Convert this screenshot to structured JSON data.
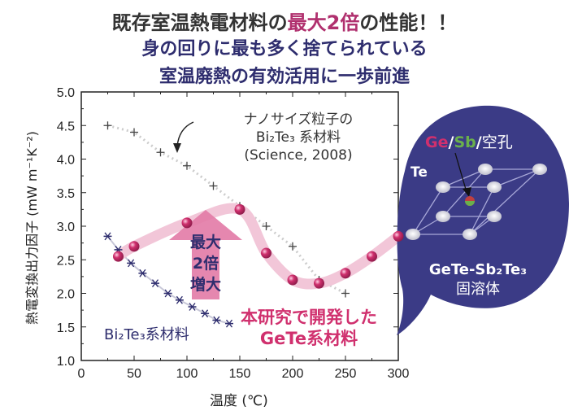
{
  "title": {
    "line1_pre": "既存室温熱電材料の",
    "line1_highlight": "最大2倍",
    "line1_post": "の性能！！",
    "line2": "身の回りに最も多く捨てられている",
    "line3": "室温廃熱の有効活用に一歩前進"
  },
  "chart_data": {
    "type": "scatter",
    "xlabel": "温度 (℃)",
    "ylabel": "熱電変換出力因子 (mW m⁻¹K⁻²)",
    "xlim": [
      0,
      300
    ],
    "ylim": [
      1.0,
      5.0
    ],
    "xticks": [
      "0",
      "50",
      "100",
      "150",
      "200",
      "250",
      "300"
    ],
    "yticks": [
      "1.0",
      "1.5",
      "2.0",
      "2.5",
      "3.0",
      "3.5",
      "4.0",
      "4.5",
      "5.0"
    ],
    "grid": false,
    "series": [
      {
        "name": "ナノサイズ粒子のBi2Te3系材料 (Science, 2008)",
        "marker": "plus",
        "color": "#444444",
        "x": [
          25,
          50,
          75,
          100,
          125,
          150,
          175,
          200,
          225,
          250
        ],
        "y": [
          4.5,
          4.4,
          4.1,
          3.9,
          3.6,
          3.3,
          3.0,
          2.7,
          2.2,
          2.0
        ]
      },
      {
        "name": "Bi2Te3系材料",
        "marker": "asterisk",
        "color": "#2e2d6e",
        "x": [
          25,
          35,
          47,
          58,
          70,
          82,
          93,
          105,
          117,
          128,
          140
        ],
        "y": [
          2.85,
          2.65,
          2.45,
          2.3,
          2.15,
          2.0,
          1.9,
          1.8,
          1.7,
          1.6,
          1.55
        ]
      },
      {
        "name": "本研究で開発したGeTe系材料",
        "marker": "circle",
        "color": "#d0306e",
        "x": [
          35,
          50,
          100,
          150,
          175,
          200,
          225,
          250,
          275,
          300
        ],
        "y": [
          2.55,
          2.7,
          3.05,
          3.25,
          2.6,
          2.2,
          2.15,
          2.3,
          2.55,
          2.85
        ]
      }
    ],
    "annotations": {
      "nano_line1": "ナノサイズ粒子の",
      "nano_line2": "Bi₂Te₃ 系材料",
      "nano_line3": "(Science, 2008)",
      "bi2te3": "Bi₂Te₃系材料",
      "gete_line1": "本研究で開発した",
      "gete_line2": "GeTe系材料",
      "arrow_line1": "最大",
      "arrow_line2": "2倍",
      "arrow_line3": "増大"
    }
  },
  "bubble": {
    "site_ge": "Ge",
    "site_sb": "Sb",
    "site_vac": "空孔",
    "te": "Te",
    "compound": "GeTe-Sb₂Te₃",
    "solid_solution": "固溶体",
    "ge_color": "#d0306e",
    "sb_color": "#6ab04c"
  }
}
